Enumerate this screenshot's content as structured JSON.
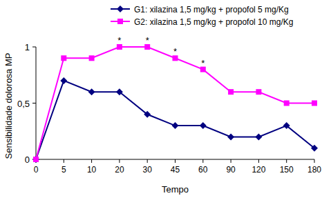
{
  "chart_data": {
    "type": "line",
    "x_label": "Tempo",
    "y_label": "Sensibilidade dolorosa MP",
    "categories": [
      "0",
      "5",
      "10",
      "20",
      "30",
      "45",
      "60",
      "90",
      "120",
      "150",
      "180"
    ],
    "series": [
      {
        "name": "G1: xilazina 1,5 mg/kg + propofol 5 mg/Kg",
        "color": "#000080",
        "marker": "diamond",
        "values": [
          0,
          0.7,
          0.6,
          0.6,
          0.4,
          0.3,
          0.3,
          0.2,
          0.2,
          0.3,
          0.1
        ]
      },
      {
        "name": "G2: xilazina 1,5 mg/kg + propofol 10 mg/Kg",
        "color": "#ff00ff",
        "marker": "square",
        "values": [
          0,
          0.9,
          0.9,
          1,
          1,
          0.9,
          0.8,
          0.6,
          0.6,
          0.5,
          0.5
        ]
      }
    ],
    "ylim": [
      0,
      1
    ],
    "yticks": [
      0,
      {
        "value": 0.5,
        "label": "0,5"
      },
      1
    ],
    "grid": false,
    "legend": "top",
    "annotations": [
      {
        "text": "*",
        "category": "20"
      },
      {
        "text": "*",
        "category": "30"
      },
      {
        "text": "*",
        "category": "45"
      },
      {
        "text": "*",
        "category": "60"
      }
    ]
  }
}
